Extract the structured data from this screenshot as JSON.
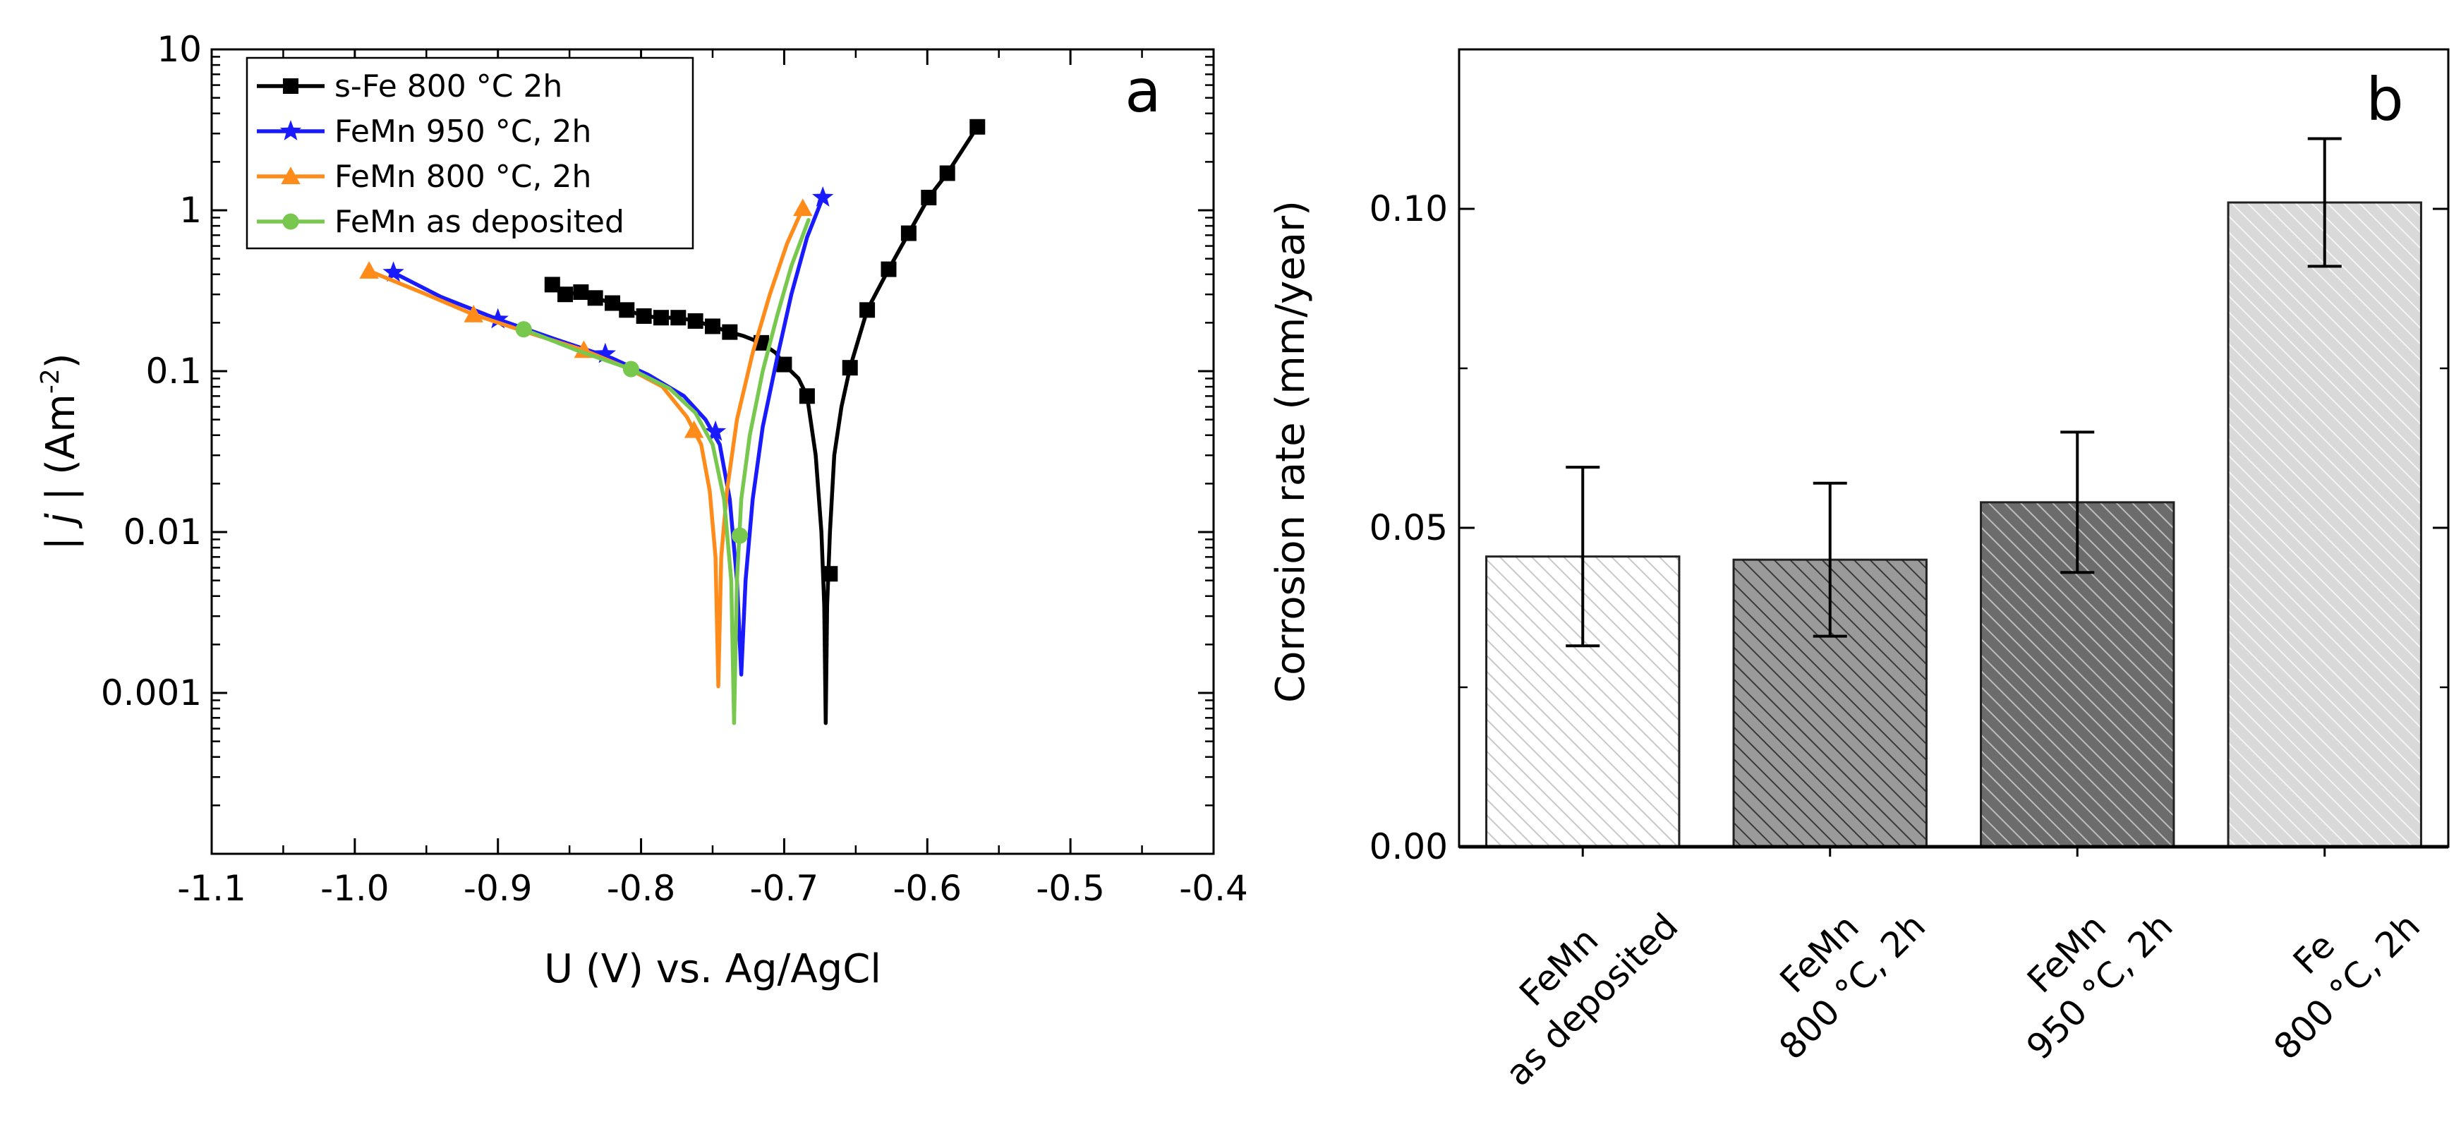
{
  "chart_data": [
    {
      "type": "line",
      "panel_label": "a",
      "xlabel": "U (V) vs. Ag/AgCl",
      "ylabel": {
        "prefix": "| ",
        "italic": "j",
        "suffix": " | (Am",
        "sup": "-2",
        "end": ")"
      },
      "xlim": [
        -1.1,
        -0.4
      ],
      "ylim": [
        0.0001,
        10
      ],
      "yscale": "log",
      "xticks": [
        -1.1,
        -1.0,
        -0.9,
        -0.8,
        -0.7,
        -0.6,
        -0.5,
        -0.4
      ],
      "xtick_labels": [
        "-1.1",
        "-1.0",
        "-0.9",
        "-0.8",
        "-0.7",
        "-0.6",
        "-0.5",
        "-0.4"
      ],
      "yticks": [
        0.001,
        0.01,
        0.1,
        1,
        10
      ],
      "ytick_labels": [
        "0.001",
        "0.01",
        "0.1",
        "1",
        "10"
      ],
      "legend_position": "top-left",
      "series": [
        {
          "name": "s-Fe 800 °C 2h",
          "color": "#000000",
          "marker": "square",
          "points": [
            [
              -0.862,
              0.345
            ],
            [
              -0.853,
              0.3
            ],
            [
              -0.842,
              0.31
            ],
            [
              -0.832,
              0.285
            ],
            [
              -0.82,
              0.265
            ],
            [
              -0.81,
              0.24
            ],
            [
              -0.798,
              0.22
            ],
            [
              -0.786,
              0.215
            ],
            [
              -0.774,
              0.215
            ],
            [
              -0.762,
              0.205
            ],
            [
              -0.75,
              0.19
            ],
            [
              -0.738,
              0.175
            ],
            [
              -0.728,
              0.165
            ],
            [
              -0.716,
              0.15
            ],
            [
              -0.706,
              0.13
            ],
            [
              -0.7,
              0.11
            ],
            [
              -0.69,
              0.09
            ],
            [
              -0.684,
              0.07
            ],
            [
              -0.678,
              0.03
            ],
            [
              -0.674,
              0.01
            ],
            [
              -0.672,
              0.0035
            ],
            [
              -0.671,
              0.00065
            ],
            [
              -0.67,
              0.0035
            ],
            [
              -0.668,
              0.01
            ],
            [
              -0.665,
              0.03
            ],
            [
              -0.66,
              0.06
            ],
            [
              -0.654,
              0.105
            ],
            [
              -0.642,
              0.24
            ],
            [
              -0.627,
              0.43
            ],
            [
              -0.613,
              0.72
            ],
            [
              -0.599,
              1.2
            ],
            [
              -0.586,
              1.7
            ],
            [
              -0.565,
              3.3
            ]
          ],
          "markers": [
            [
              -0.862,
              0.345
            ],
            [
              -0.853,
              0.3
            ],
            [
              -0.842,
              0.31
            ],
            [
              -0.832,
              0.285
            ],
            [
              -0.82,
              0.265
            ],
            [
              -0.81,
              0.24
            ],
            [
              -0.798,
              0.22
            ],
            [
              -0.786,
              0.215
            ],
            [
              -0.774,
              0.215
            ],
            [
              -0.762,
              0.205
            ],
            [
              -0.75,
              0.19
            ],
            [
              -0.738,
              0.175
            ],
            [
              -0.716,
              0.15
            ],
            [
              -0.7,
              0.11
            ],
            [
              -0.684,
              0.07
            ],
            [
              -0.668,
              0.0055
            ],
            [
              -0.654,
              0.105
            ],
            [
              -0.642,
              0.24
            ],
            [
              -0.627,
              0.43
            ],
            [
              -0.613,
              0.72
            ],
            [
              -0.599,
              1.2
            ],
            [
              -0.586,
              1.7
            ],
            [
              -0.565,
              3.3
            ]
          ]
        },
        {
          "name": "FeMn 950 °C, 2h",
          "color": "#1a1aff",
          "marker": "star",
          "points": [
            [
              -0.973,
              0.41
            ],
            [
              -0.94,
              0.29
            ],
            [
              -0.9,
              0.21
            ],
            [
              -0.86,
              0.158
            ],
            [
              -0.82,
              0.12
            ],
            [
              -0.795,
              0.095
            ],
            [
              -0.77,
              0.07
            ],
            [
              -0.755,
              0.05
            ],
            [
              -0.745,
              0.035
            ],
            [
              -0.738,
              0.016
            ],
            [
              -0.733,
              0.005
            ],
            [
              -0.73,
              0.0013
            ],
            [
              -0.727,
              0.005
            ],
            [
              -0.722,
              0.016
            ],
            [
              -0.715,
              0.045
            ],
            [
              -0.705,
              0.12
            ],
            [
              -0.695,
              0.3
            ],
            [
              -0.684,
              0.68
            ],
            [
              -0.673,
              1.2
            ]
          ],
          "markers": [
            [
              -0.973,
              0.41
            ],
            [
              -0.9,
              0.21
            ],
            [
              -0.825,
              0.128
            ],
            [
              -0.748,
              0.042
            ],
            [
              -0.673,
              1.2
            ]
          ]
        },
        {
          "name": "FeMn 800 °C, 2h",
          "color": "#ff8c1a",
          "marker": "triangle",
          "points": [
            [
              -0.99,
              0.42
            ],
            [
              -0.95,
              0.3
            ],
            [
              -0.917,
              0.225
            ],
            [
              -0.88,
              0.175
            ],
            [
              -0.84,
              0.135
            ],
            [
              -0.81,
              0.105
            ],
            [
              -0.785,
              0.08
            ],
            [
              -0.768,
              0.052
            ],
            [
              -0.758,
              0.035
            ],
            [
              -0.752,
              0.018
            ],
            [
              -0.748,
              0.007
            ],
            [
              -0.746,
              0.0011
            ],
            [
              -0.744,
              0.007
            ],
            [
              -0.74,
              0.018
            ],
            [
              -0.733,
              0.05
            ],
            [
              -0.722,
              0.13
            ],
            [
              -0.71,
              0.3
            ],
            [
              -0.698,
              0.62
            ],
            [
              -0.687,
              1.03
            ]
          ],
          "markers": [
            [
              -0.99,
              0.42
            ],
            [
              -0.917,
              0.225
            ],
            [
              -0.84,
              0.135
            ],
            [
              -0.763,
              0.043
            ],
            [
              -0.687,
              1.03
            ]
          ]
        },
        {
          "name": "FeMn as deposited",
          "color": "#78c850",
          "marker": "circle",
          "points": [
            [
              -0.882,
              0.182
            ],
            [
              -0.845,
              0.135
            ],
            [
              -0.807,
              0.103
            ],
            [
              -0.78,
              0.078
            ],
            [
              -0.762,
              0.055
            ],
            [
              -0.75,
              0.035
            ],
            [
              -0.742,
              0.016
            ],
            [
              -0.737,
              0.005
            ],
            [
              -0.735,
              0.00065
            ],
            [
              -0.733,
              0.005
            ],
            [
              -0.73,
              0.016
            ],
            [
              -0.724,
              0.04
            ],
            [
              -0.715,
              0.1
            ],
            [
              -0.705,
              0.22
            ],
            [
              -0.695,
              0.45
            ],
            [
              -0.683,
              0.87
            ]
          ],
          "markers": [
            [
              -0.882,
              0.182
            ],
            [
              -0.807,
              0.103
            ],
            [
              -0.731,
              0.0095
            ]
          ]
        }
      ]
    },
    {
      "type": "bar",
      "panel_label": "b",
      "ylabel": "Corrosion rate (mm/year)",
      "ylim": [
        0,
        0.125
      ],
      "yticks": [
        0,
        0.05,
        0.1
      ],
      "ytick_labels": [
        "0.00",
        "0.05",
        "0.10"
      ],
      "categories": [
        {
          "line1": "FeMn",
          "line2": "as deposited"
        },
        {
          "line1": "FeMn",
          "line2": "800 °C, 2h"
        },
        {
          "line1": "FeMn",
          "line2": "950 °C, 2h"
        },
        {
          "line1": "Fe",
          "line2": "800 °C, 2h"
        }
      ],
      "values": [
        0.0455,
        0.045,
        0.054,
        0.101
      ],
      "errors": [
        0.014,
        0.012,
        0.011,
        0.01
      ],
      "fill_colors": [
        "#ffffff",
        "#9a9a9a",
        "#6c6c6c",
        "#d9d9d9"
      ],
      "hatch_colors": [
        "#c8c8c8",
        "#3a3a3a",
        "#bdbdbd",
        "#f4f4f4"
      ],
      "hatch_angles": [
        -45,
        -45,
        -45,
        -45
      ]
    }
  ]
}
